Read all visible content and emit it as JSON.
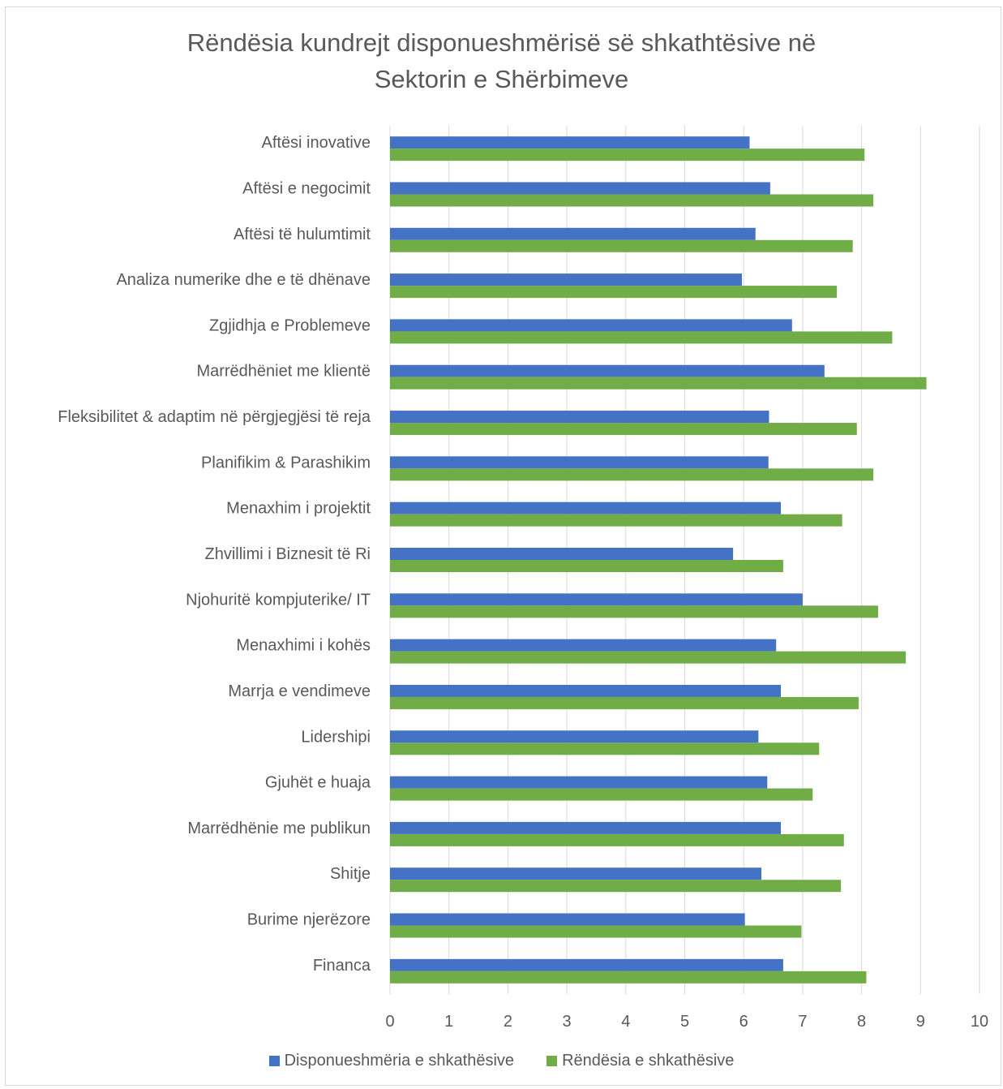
{
  "chart_data": {
    "type": "bar",
    "orientation": "horizontal",
    "title_lines": [
      "Rëndësia kundrejt disponueshmërisë së shkathtësive në",
      "Sektorin e Shërbimeve"
    ],
    "categories": [
      "Aftësi inovative",
      "Aftësi e negocimit",
      "Aftësi të hulumtimit",
      "Analiza numerike dhe e të dhënave",
      "Zgjidhja e Problemeve",
      "Marrëdhëniet me klientë",
      "Fleksibilitet & adaptim në përgjegjësi të reja",
      "Planifikim & Parashikim",
      "Menaxhim i projektit",
      "Zhvillimi i Biznesit të Ri",
      "Njohuritë kompjuterike/ IT",
      "Menaxhimi i kohës",
      "Marrja e vendimeve",
      "Lidershipi",
      "Gjuhët e huaja",
      "Marrëdhënie me publikun",
      "Shitje",
      "Burime njerëzore",
      "Financa"
    ],
    "series": [
      {
        "name": "Disponueshmëria e shkathësive",
        "color": "#4472c4",
        "values": [
          6.1,
          6.45,
          6.2,
          5.97,
          6.82,
          7.37,
          6.43,
          6.42,
          6.63,
          5.82,
          7.0,
          6.55,
          6.63,
          6.25,
          6.4,
          6.63,
          6.3,
          6.02,
          6.67
        ]
      },
      {
        "name": "Rëndësia e shkathësive",
        "color": "#70ad47",
        "values": [
          8.05,
          8.2,
          7.85,
          7.58,
          8.52,
          9.1,
          7.92,
          8.2,
          7.67,
          6.67,
          8.28,
          8.75,
          7.95,
          7.28,
          7.17,
          7.7,
          7.65,
          6.98,
          8.08
        ]
      }
    ],
    "xlim": [
      0,
      10
    ],
    "xticks": [
      "0",
      "1",
      "2",
      "3",
      "4",
      "5",
      "6",
      "7",
      "8",
      "9",
      "10"
    ],
    "xlabel": "",
    "ylabel": "",
    "grid": "vertical",
    "legend_position": "bottom"
  }
}
